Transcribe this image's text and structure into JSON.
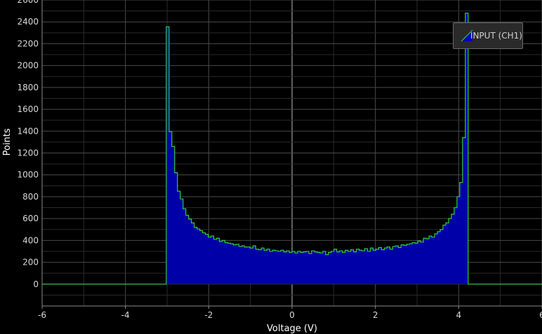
{
  "chart_data": {
    "type": "area",
    "xlabel": "Voltage (V)",
    "ylabel": "Points",
    "xlim": [
      -6,
      6
    ],
    "ylim": [
      -200,
      2600
    ],
    "x_ticks": [
      -6,
      -4,
      -2,
      0,
      2,
      4,
      6
    ],
    "y_ticks": [
      0,
      200,
      400,
      600,
      800,
      1000,
      1200,
      1400,
      1600,
      1800,
      2000,
      2200,
      2400,
      2600
    ],
    "grid": true,
    "legend_position": "top-right",
    "series": [
      {
        "name": "INPUT (CH1)",
        "line_color": "#2ecc40",
        "fill_color": "#0000a8",
        "bins": {
          "x_start": -3.02,
          "bin_width": 0.0671,
          "values": [
            2355,
            1395,
            1260,
            1020,
            850,
            780,
            690,
            630,
            595,
            560,
            520,
            505,
            490,
            470,
            455,
            430,
            440,
            410,
            420,
            390,
            400,
            380,
            375,
            370,
            360,
            365,
            345,
            350,
            340,
            340,
            330,
            350,
            320,
            315,
            330,
            310,
            320,
            300,
            310,
            305,
            300,
            310,
            295,
            305,
            290,
            300,
            285,
            300,
            290,
            295,
            300,
            280,
            305,
            295,
            290,
            285,
            300,
            270,
            290,
            300,
            320,
            295,
            305,
            290,
            310,
            300,
            315,
            295,
            320,
            310,
            305,
            325,
            300,
            330,
            310,
            320,
            335,
            315,
            330,
            340,
            320,
            345,
            350,
            335,
            360,
            355,
            365,
            370,
            380,
            375,
            395,
            385,
            420,
            415,
            440,
            430,
            460,
            480,
            500,
            540,
            560,
            600,
            640,
            700,
            800,
            930,
            1340,
            2480
          ]
        }
      }
    ]
  }
}
